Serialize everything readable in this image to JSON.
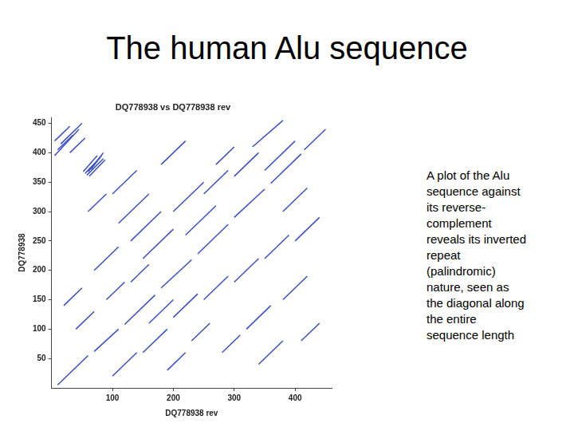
{
  "slide": {
    "title": "The human Alu sequence",
    "caption_lines": [
      "A plot of the Alu",
      "sequence against",
      "its reverse-",
      "complement",
      "reveals its inverted",
      "repeat",
      "(palindromic)",
      "nature, seen as",
      "the diagonal along",
      "the entire",
      "sequence length"
    ]
  },
  "chart_data": {
    "type": "scatter",
    "title": "DQ778938 vs DQ778938 rev",
    "x_label": "DQ778938 rev",
    "y_label": "DQ778938",
    "xlim": [
      0,
      460
    ],
    "ylim": [
      0,
      460
    ],
    "xticks": [
      100,
      200,
      300,
      400
    ],
    "yticks": [
      50,
      100,
      150,
      200,
      250,
      300,
      350,
      400,
      450
    ],
    "grid": false,
    "color": "#3a4fc0",
    "line_style": "solid",
    "segments": [
      [
        10,
        5,
        60,
        55
      ],
      [
        70,
        62,
        110,
        100
      ],
      [
        120,
        108,
        170,
        158
      ],
      [
        180,
        170,
        230,
        218
      ],
      [
        240,
        228,
        290,
        278
      ],
      [
        300,
        290,
        350,
        338
      ],
      [
        360,
        348,
        410,
        398
      ],
      [
        415,
        405,
        450,
        440
      ],
      [
        55,
        365,
        80,
        392
      ],
      [
        58,
        362,
        85,
        390
      ],
      [
        60,
        368,
        82,
        395
      ],
      [
        52,
        368,
        75,
        395
      ],
      [
        62,
        360,
        88,
        388
      ],
      [
        65,
        372,
        85,
        400
      ],
      [
        5,
        395,
        45,
        440
      ],
      [
        10,
        405,
        35,
        430
      ],
      [
        15,
        415,
        50,
        450
      ],
      [
        5,
        420,
        30,
        445
      ],
      [
        30,
        400,
        55,
        425
      ],
      [
        100,
        330,
        140,
        370
      ],
      [
        110,
        280,
        160,
        330
      ],
      [
        130,
        250,
        180,
        300
      ],
      [
        150,
        220,
        200,
        270
      ],
      [
        200,
        300,
        250,
        350
      ],
      [
        220,
        260,
        270,
        310
      ],
      [
        250,
        330,
        290,
        370
      ],
      [
        300,
        360,
        340,
        400
      ],
      [
        330,
        410,
        380,
        455
      ],
      [
        180,
        380,
        220,
        420
      ],
      [
        60,
        300,
        90,
        330
      ],
      [
        70,
        200,
        110,
        240
      ],
      [
        90,
        150,
        120,
        180
      ],
      [
        40,
        100,
        70,
        130
      ],
      [
        20,
        140,
        50,
        170
      ],
      [
        130,
        180,
        160,
        210
      ],
      [
        270,
        380,
        300,
        410
      ],
      [
        350,
        370,
        400,
        420
      ],
      [
        380,
        300,
        420,
        340
      ],
      [
        160,
        110,
        200,
        150
      ],
      [
        100,
        20,
        140,
        60
      ],
      [
        150,
        60,
        190,
        100
      ],
      [
        200,
        120,
        240,
        160
      ],
      [
        250,
        150,
        290,
        190
      ],
      [
        300,
        180,
        340,
        220
      ],
      [
        320,
        100,
        360,
        140
      ],
      [
        350,
        220,
        390,
        260
      ],
      [
        380,
        150,
        420,
        190
      ],
      [
        280,
        60,
        310,
        90
      ],
      [
        400,
        250,
        440,
        290
      ],
      [
        230,
        80,
        260,
        110
      ],
      [
        340,
        40,
        380,
        80
      ],
      [
        190,
        30,
        220,
        60
      ],
      [
        410,
        80,
        440,
        110
      ]
    ]
  }
}
